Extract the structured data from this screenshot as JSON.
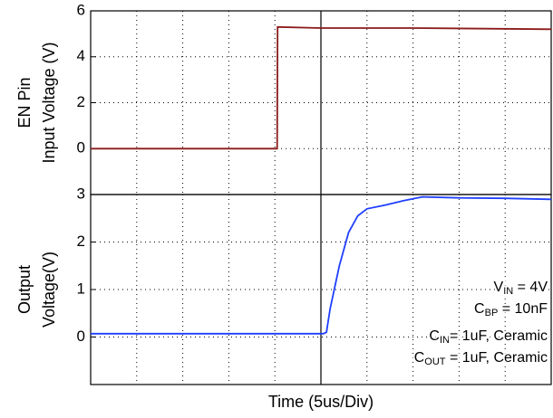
{
  "chart_data": [
    {
      "type": "line",
      "ylabel": [
        "EN Pin",
        "Input Voltage (V)"
      ],
      "xlim": [
        0,
        10
      ],
      "xticks": [
        0,
        1,
        2,
        3,
        4,
        5,
        6,
        7,
        8,
        9,
        10
      ],
      "ylim": [
        -2,
        6
      ],
      "yticks": [
        0,
        2,
        4,
        6
      ],
      "grid": true,
      "series": [
        {
          "color": "#8b1a1a",
          "x": [
            0,
            4.05,
            4.06,
            5,
            7,
            10
          ],
          "values": [
            0,
            0,
            5.3,
            5.25,
            5.25,
            5.2
          ]
        }
      ]
    },
    {
      "type": "line",
      "ylabel": [
        "Output",
        "Voltage(V)"
      ],
      "xlabel": "Time (5us/Div)",
      "xlim": [
        0,
        10
      ],
      "xticks": [
        0,
        1,
        2,
        3,
        4,
        5,
        6,
        7,
        8,
        9,
        10
      ],
      "ylim": [
        -1,
        3
      ],
      "yticks": [
        0,
        1,
        2,
        3
      ],
      "grid": true,
      "series": [
        {
          "color": "#1f3fff",
          "x": [
            0,
            5.05,
            5.12,
            5.2,
            5.4,
            5.6,
            5.8,
            6.0,
            6.4,
            6.8,
            7.2,
            8,
            9,
            10
          ],
          "values": [
            0.07,
            0.07,
            0.1,
            0.6,
            1.5,
            2.2,
            2.55,
            2.7,
            2.78,
            2.87,
            2.95,
            2.93,
            2.92,
            2.9
          ]
        }
      ],
      "annotations": [
        [
          "V",
          "IN",
          " = 4V"
        ],
        [
          "C",
          "BP",
          " = 10nF"
        ],
        [
          "C",
          "IN",
          "= 1uF, Ceramic"
        ],
        [
          "C",
          "OUT",
          " = 1uF, Ceramic"
        ]
      ]
    }
  ]
}
